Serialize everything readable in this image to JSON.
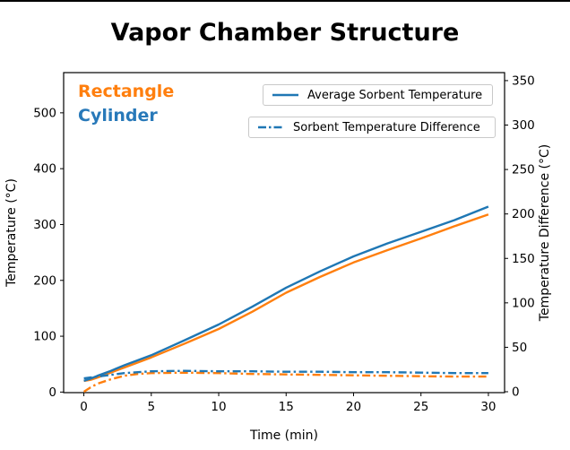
{
  "figure": {
    "background": "#ffffff"
  },
  "chart_data": {
    "type": "line",
    "title": "Vapor Chamber Structure",
    "xlabel": "Time (min)",
    "ylabel_left": "Temperature (°C)",
    "ylabel_right": "Temperature Difference (°C)",
    "xlim": [
      -1.5,
      31.2
    ],
    "ylim_left": [
      -1,
      572
    ],
    "ylim_right": [
      -1,
      359
    ],
    "xticks": [
      0,
      5,
      10,
      15,
      20,
      25,
      30
    ],
    "yticks_left": [
      0,
      100,
      200,
      300,
      400,
      500
    ],
    "yticks_right": [
      0,
      50,
      100,
      150,
      200,
      250,
      300,
      350
    ],
    "grid": false,
    "annotations": [
      {
        "text": "Rectangle",
        "color": "#ff7f0e"
      },
      {
        "text": "Cylinder",
        "color": "#2879b9"
      }
    ],
    "legend": {
      "position": "upper right",
      "entries": [
        {
          "label": "Average Sorbent Temperature",
          "style": "solid",
          "color": "#1f77b4"
        },
        {
          "label": "Sorbent Temperature Difference",
          "style": "dashdot",
          "color": "#1f77b4"
        }
      ]
    },
    "x": [
      0,
      0.5,
      1,
      2,
      3,
      4,
      5,
      7.5,
      10,
      12.5,
      15,
      17.5,
      20,
      22.5,
      25,
      27.5,
      30
    ],
    "series": [
      {
        "name": "Rectangle - Average Sorbent Temperature",
        "axis": "left",
        "style": "solid",
        "color": "#ff7f0e",
        "values": [
          20,
          22,
          26,
          35,
          44,
          53,
          62,
          87,
          113,
          144,
          178,
          206,
          232,
          254,
          275,
          297,
          318
        ]
      },
      {
        "name": "Cylinder - Average Sorbent Temperature",
        "axis": "left",
        "style": "solid",
        "color": "#1f77b4",
        "values": [
          20,
          24,
          29,
          38,
          48,
          57,
          66,
          93,
          121,
          153,
          187,
          216,
          243,
          266,
          287,
          308,
          332
        ]
      },
      {
        "name": "Rectangle - Sorbent Temperature Difference",
        "axis": "right",
        "style": "dashdot",
        "color": "#ff7f0e",
        "values": [
          0,
          5,
          9,
          14,
          18,
          20,
          21,
          21.5,
          21,
          20,
          19.5,
          19,
          18.5,
          18,
          17.5,
          17,
          17
        ]
      },
      {
        "name": "Cylinder - Sorbent Temperature Difference",
        "axis": "right",
        "style": "dashdot",
        "color": "#1f77b4",
        "values": [
          15,
          16,
          17,
          19,
          21,
          22,
          23,
          23.5,
          23,
          23,
          22.5,
          22.5,
          22,
          22,
          21.5,
          21,
          21
        ]
      }
    ]
  }
}
